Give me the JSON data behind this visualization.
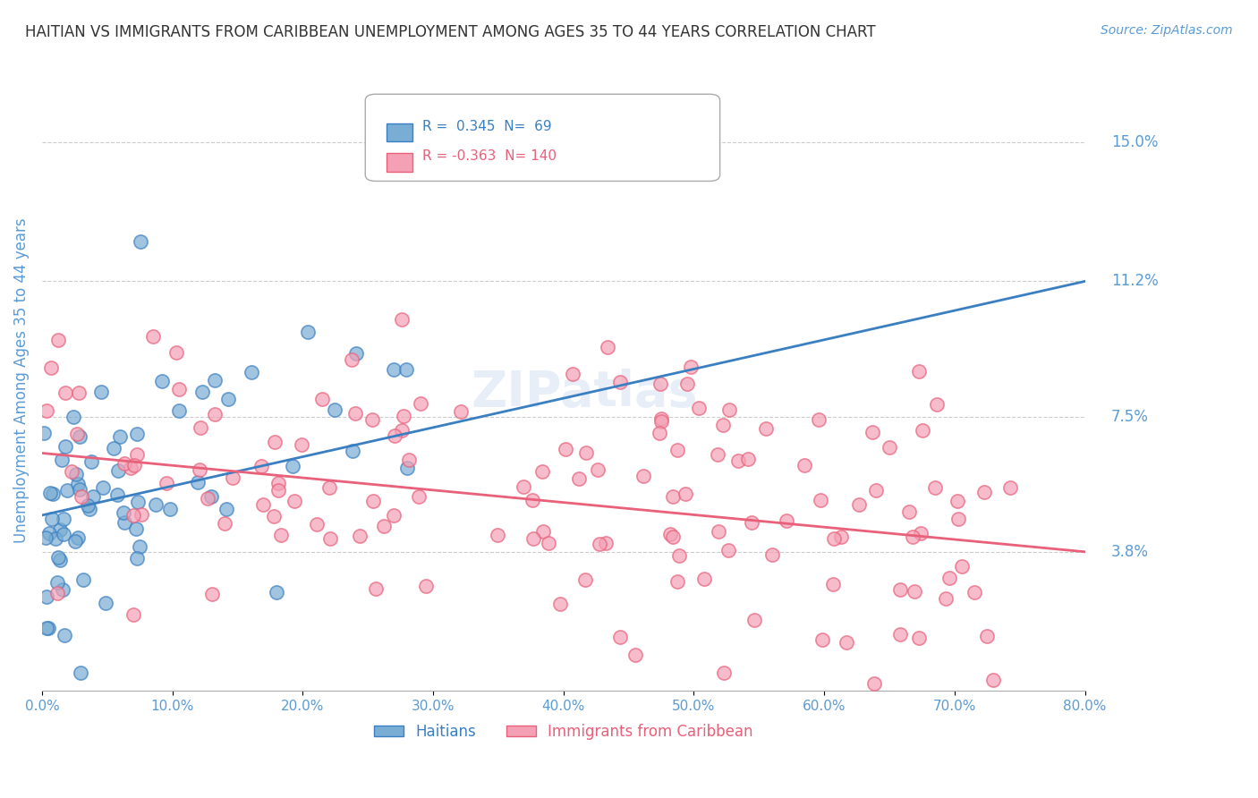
{
  "title": "HAITIAN VS IMMIGRANTS FROM CARIBBEAN UNEMPLOYMENT AMONG AGES 35 TO 44 YEARS CORRELATION CHART",
  "source": "Source: ZipAtlas.com",
  "xlabel": "",
  "ylabel": "Unemployment Among Ages 35 to 44 years",
  "xlim": [
    0.0,
    80.0
  ],
  "ylim": [
    0.0,
    17.0
  ],
  "yticks": [
    3.8,
    7.5,
    11.2,
    15.0
  ],
  "xticks": [
    0.0,
    10.0,
    20.0,
    30.0,
    40.0,
    50.0,
    60.0,
    70.0,
    80.0
  ],
  "blue_R": 0.345,
  "blue_N": 69,
  "pink_R": -0.363,
  "pink_N": 140,
  "blue_color": "#7aadd4",
  "pink_color": "#f4a0b5",
  "blue_line_color": "#3a7fc1",
  "pink_line_color": "#e8607a",
  "watermark": "ZIPatlas",
  "legend_label_blue": "Haitians",
  "legend_label_pink": "Immigrants from Caribbean",
  "background_color": "#ffffff",
  "grid_color": "#cccccc",
  "title_color": "#333333",
  "axis_label_color": "#5b9bd5",
  "tick_label_color": "#5b9bd5"
}
